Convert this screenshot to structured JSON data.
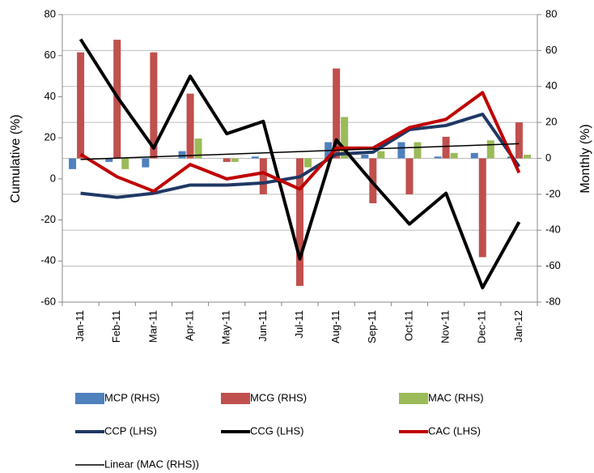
{
  "chart_data": {
    "type": "combo",
    "categories": [
      "Jan-11",
      "Feb-11",
      "Mar-11",
      "Apr-11",
      "May-11",
      "Jun-11",
      "Jul-11",
      "Aug-11",
      "Sep-11",
      "Oct-11",
      "Nov-11",
      "Dec-11",
      "Jan-12"
    ],
    "ylabel": "Cumulative (%)",
    "y2label": "Monthly (%)",
    "ylim": [
      -60,
      80
    ],
    "yticks": [
      -60,
      -40,
      -20,
      0,
      20,
      40,
      60,
      80
    ],
    "y2lim": [
      -80,
      80
    ],
    "y2ticks": [
      -80,
      -60,
      -40,
      -20,
      0,
      20,
      40,
      60,
      80
    ],
    "grid": "y2",
    "series": [
      {
        "name": "MCP (RHS)",
        "type": "bar",
        "axis": "y2",
        "color": "#4f81bd",
        "values": [
          -6,
          -2,
          -5,
          4,
          0,
          1,
          0,
          9,
          2,
          9,
          1,
          3,
          1
        ]
      },
      {
        "name": "MCG (RHS)",
        "type": "bar",
        "axis": "y2",
        "color": "#c0504d",
        "values": [
          59,
          66,
          59,
          36,
          -2,
          -20,
          -71,
          50,
          -25,
          -20,
          12,
          -55,
          20
        ]
      },
      {
        "name": "MAC (RHS)",
        "type": "bar",
        "axis": "y2",
        "color": "#9bbb59",
        "values": [
          0,
          -6,
          0,
          11,
          -2,
          0,
          -5,
          23,
          4,
          9,
          3,
          10,
          2
        ],
        "trendline": {
          "name": "Linear (MAC (RHS))",
          "color": "#000000"
        }
      },
      {
        "name": "CCP (LHS)",
        "type": "line",
        "axis": "y",
        "color": "#1f3864",
        "values": [
          -7,
          -9,
          -7,
          -3,
          -3,
          -2,
          1,
          12,
          13,
          24,
          26,
          31.5,
          6
        ]
      },
      {
        "name": "CCG (LHS)",
        "type": "line",
        "axis": "y",
        "color": "#000000",
        "values": [
          68,
          40,
          15,
          50,
          22,
          28,
          -39,
          19,
          -2,
          -22,
          -7,
          -53,
          -21
        ]
      },
      {
        "name": "CAC (LHS)",
        "type": "line",
        "axis": "y",
        "color": "#c00000",
        "values": [
          12,
          1,
          -6,
          7,
          0,
          3,
          -5,
          15,
          15,
          25,
          29,
          42,
          3
        ]
      }
    ]
  }
}
